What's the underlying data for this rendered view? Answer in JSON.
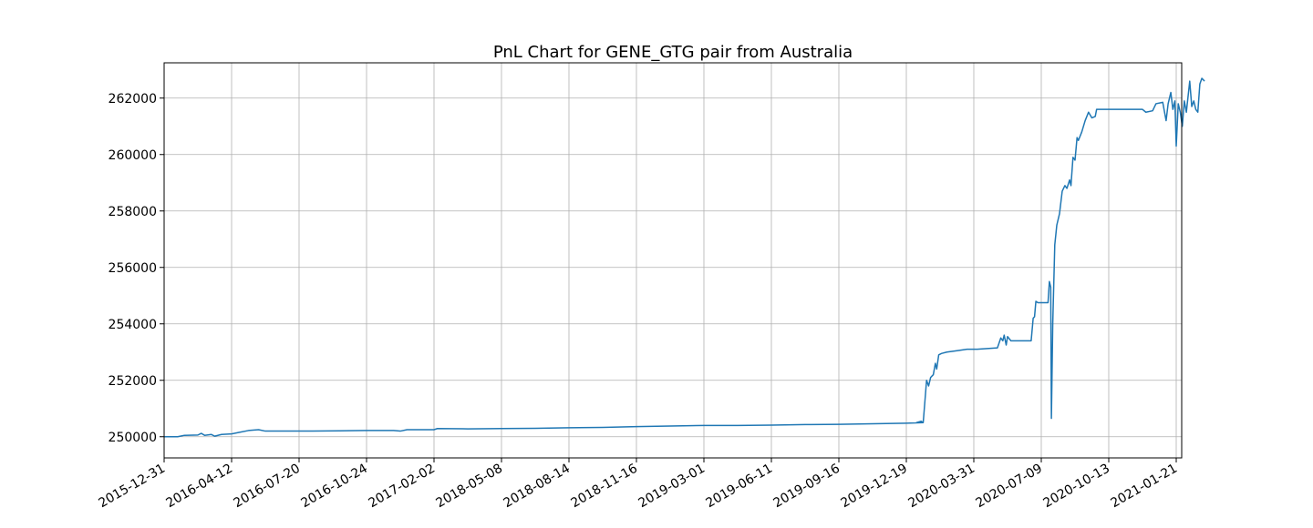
{
  "chart_data": {
    "type": "line",
    "title": "PnL Chart for GENE_GTG pair from Australia",
    "xlabel": "",
    "ylabel": "",
    "grid": true,
    "ylim": [
      249250,
      263250
    ],
    "y_ticks": [
      250000,
      252000,
      254000,
      256000,
      258000,
      260000,
      262000
    ],
    "y_tick_labels": [
      "250000",
      "252000",
      "254000",
      "256000",
      "258000",
      "260000",
      "262000"
    ],
    "x_tick_labels": [
      "2015-12-31",
      "2016-04-12",
      "2016-07-20",
      "2016-10-24",
      "2017-02-02",
      "2018-05-08",
      "2018-08-14",
      "2018-11-16",
      "2019-03-01",
      "2019-06-11",
      "2019-09-16",
      "2019-12-19",
      "2020-03-31",
      "2020-07-09",
      "2020-10-13",
      "2021-01-21"
    ],
    "series": [
      {
        "color": "#1f77b4",
        "points": [
          [
            0.0,
            250000
          ],
          [
            0.2,
            250000
          ],
          [
            0.3,
            250050
          ],
          [
            0.5,
            250060
          ],
          [
            0.55,
            250120
          ],
          [
            0.6,
            250050
          ],
          [
            0.7,
            250080
          ],
          [
            0.75,
            250020
          ],
          [
            0.85,
            250080
          ],
          [
            1.0,
            250100
          ],
          [
            1.1,
            250150
          ],
          [
            1.25,
            250220
          ],
          [
            1.4,
            250250
          ],
          [
            1.5,
            250200
          ],
          [
            1.8,
            250200
          ],
          [
            2.2,
            250200
          ],
          [
            2.6,
            250210
          ],
          [
            3.0,
            250220
          ],
          [
            3.4,
            250220
          ],
          [
            3.5,
            250200
          ],
          [
            3.6,
            250250
          ],
          [
            4.0,
            250250
          ],
          [
            4.05,
            250290
          ],
          [
            4.5,
            250280
          ],
          [
            5.0,
            250290
          ],
          [
            5.5,
            250300
          ],
          [
            6.0,
            250320
          ],
          [
            6.5,
            250330
          ],
          [
            7.0,
            250360
          ],
          [
            7.5,
            250380
          ],
          [
            8.0,
            250400
          ],
          [
            8.5,
            250400
          ],
          [
            9.0,
            250410
          ],
          [
            9.5,
            250430
          ],
          [
            10.0,
            250440
          ],
          [
            10.5,
            250460
          ],
          [
            11.0,
            250480
          ],
          [
            11.25,
            250500
          ],
          [
            11.15,
            250500
          ],
          [
            11.22,
            250550
          ],
          [
            11.25,
            250500
          ],
          [
            11.3,
            252000
          ],
          [
            11.33,
            251800
          ],
          [
            11.36,
            252100
          ],
          [
            11.4,
            252200
          ],
          [
            11.43,
            252600
          ],
          [
            11.45,
            252400
          ],
          [
            11.48,
            252900
          ],
          [
            11.52,
            252950
          ],
          [
            11.6,
            253000
          ],
          [
            11.75,
            253050
          ],
          [
            11.9,
            253100
          ],
          [
            12.05,
            253100
          ],
          [
            12.35,
            253150
          ],
          [
            12.4,
            253500
          ],
          [
            12.43,
            253400
          ],
          [
            12.45,
            253600
          ],
          [
            12.48,
            253250
          ],
          [
            12.5,
            253550
          ],
          [
            12.55,
            253400
          ],
          [
            12.85,
            253400
          ],
          [
            12.88,
            254200
          ],
          [
            12.9,
            254250
          ],
          [
            12.92,
            254800
          ],
          [
            12.95,
            254750
          ],
          [
            13.1,
            254750
          ],
          [
            13.12,
            255500
          ],
          [
            13.14,
            255300
          ],
          [
            13.15,
            250650
          ],
          [
            13.17,
            254000
          ],
          [
            13.2,
            256800
          ],
          [
            13.23,
            257500
          ],
          [
            13.27,
            257900
          ],
          [
            13.31,
            258700
          ],
          [
            13.35,
            258900
          ],
          [
            13.38,
            258800
          ],
          [
            13.42,
            259100
          ],
          [
            13.44,
            258900
          ],
          [
            13.47,
            259900
          ],
          [
            13.5,
            259800
          ],
          [
            13.53,
            260600
          ],
          [
            13.55,
            260500
          ],
          [
            13.6,
            260800
          ],
          [
            13.65,
            261200
          ],
          [
            13.7,
            261500
          ],
          [
            13.75,
            261300
          ],
          [
            13.8,
            261350
          ],
          [
            13.82,
            261600
          ],
          [
            14.0,
            261600
          ],
          [
            14.2,
            261600
          ],
          [
            14.5,
            261600
          ],
          [
            14.55,
            261500
          ],
          [
            14.65,
            261550
          ],
          [
            14.7,
            261800
          ],
          [
            14.8,
            261850
          ],
          [
            14.85,
            261200
          ],
          [
            14.88,
            261800
          ],
          [
            14.92,
            262200
          ],
          [
            14.95,
            261600
          ],
          [
            14.98,
            261900
          ],
          [
            15.0,
            260300
          ],
          [
            15.03,
            261800
          ],
          [
            15.06,
            261500
          ],
          [
            15.09,
            261000
          ],
          [
            15.12,
            261900
          ],
          [
            15.15,
            261500
          ],
          [
            15.2,
            262600
          ],
          [
            15.23,
            261700
          ],
          [
            15.26,
            261900
          ],
          [
            15.29,
            261600
          ],
          [
            15.32,
            261500
          ],
          [
            15.35,
            262500
          ],
          [
            15.38,
            262700
          ],
          [
            15.42,
            262600
          ]
        ]
      }
    ]
  }
}
